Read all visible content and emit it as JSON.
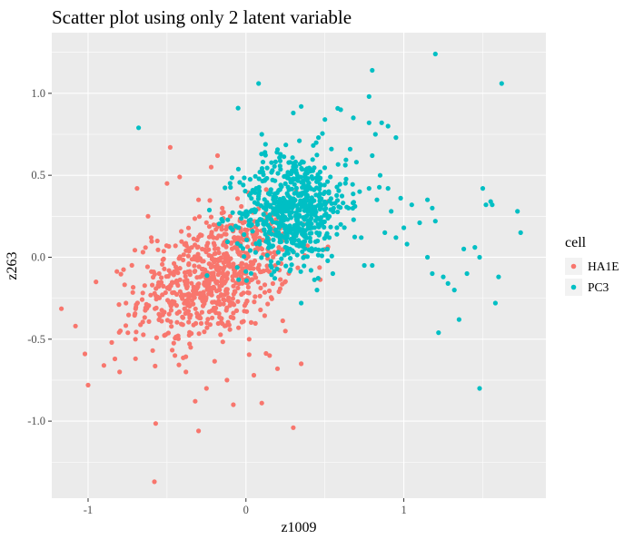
{
  "chart_data": {
    "type": "scatter",
    "title": "Scatter plot using only 2 latent variable",
    "xlabel": "z1009",
    "ylabel": "z263",
    "xlim": [
      -1.23,
      1.9
    ],
    "ylim": [
      -1.47,
      1.37
    ],
    "x_ticks": [
      -1,
      0,
      1
    ],
    "x_tick_labels": [
      "-1",
      "0",
      "1"
    ],
    "y_ticks": [
      -1.0,
      -0.5,
      0.0,
      0.5,
      1.0
    ],
    "y_tick_labels": [
      "-1.0",
      "-0.5",
      "0.0",
      "0.5",
      "1.0"
    ],
    "grid": true,
    "legend": {
      "title": "cell",
      "placement": "right"
    },
    "series": [
      {
        "name": "HA1E",
        "color": "#F8766D",
        "cluster": {
          "center": [
            -0.2,
            -0.12
          ],
          "sd": [
            0.24,
            0.2
          ],
          "corr": 0.35,
          "n": 720
        },
        "points": [
          [
            -1.08,
            -0.42
          ],
          [
            -1.02,
            -0.59
          ],
          [
            -1.0,
            -0.78
          ],
          [
            -0.95,
            -0.15
          ],
          [
            -0.9,
            -0.66
          ],
          [
            -0.85,
            -0.52
          ],
          [
            -0.83,
            -0.62
          ],
          [
            -0.8,
            -0.7
          ],
          [
            -0.76,
            -0.28
          ],
          [
            -0.7,
            -0.5
          ],
          [
            -0.69,
            0.42
          ],
          [
            -0.62,
            0.25
          ],
          [
            -0.6,
            0.12
          ],
          [
            -0.58,
            -1.37
          ],
          [
            -0.5,
            0.45
          ],
          [
            -0.48,
            0.67
          ],
          [
            -0.42,
            0.49
          ],
          [
            -0.38,
            -0.7
          ],
          [
            -0.35,
            -0.55
          ],
          [
            -0.3,
            -1.06
          ],
          [
            -0.25,
            -0.8
          ],
          [
            -0.22,
            0.55
          ],
          [
            -0.18,
            0.62
          ],
          [
            -0.12,
            -0.75
          ],
          [
            -0.08,
            -0.9
          ],
          [
            0.05,
            -0.72
          ],
          [
            0.1,
            -0.89
          ],
          [
            0.15,
            -0.6
          ],
          [
            0.2,
            -0.68
          ],
          [
            0.3,
            -1.04
          ],
          [
            0.35,
            -0.65
          ],
          [
            0.05,
            0.15
          ],
          [
            0.12,
            0.1
          ],
          [
            0.18,
            0.03
          ],
          [
            -0.55,
            -0.1
          ],
          [
            -0.45,
            -0.6
          ],
          [
            0.02,
            -0.5
          ],
          [
            -0.15,
            0.3
          ],
          [
            -0.3,
            0.35
          ],
          [
            0.25,
            -0.45
          ]
        ]
      },
      {
        "name": "PC3",
        "color": "#00BFC4",
        "cluster": {
          "center": [
            0.3,
            0.3
          ],
          "sd": [
            0.17,
            0.17
          ],
          "corr": 0.1,
          "n": 650
        },
        "points": [
          [
            -0.68,
            0.79
          ],
          [
            0.08,
            1.06
          ],
          [
            -0.05,
            0.91
          ],
          [
            0.1,
            0.75
          ],
          [
            0.3,
            0.88
          ],
          [
            0.35,
            0.92
          ],
          [
            0.5,
            0.84
          ],
          [
            0.6,
            0.9
          ],
          [
            0.68,
            0.85
          ],
          [
            0.78,
            0.98
          ],
          [
            0.8,
            1.14
          ],
          [
            0.78,
            0.82
          ],
          [
            0.82,
            0.75
          ],
          [
            0.86,
            0.82
          ],
          [
            0.9,
            0.8
          ],
          [
            0.95,
            0.73
          ],
          [
            0.8,
            0.62
          ],
          [
            0.7,
            0.58
          ],
          [
            0.85,
            0.5
          ],
          [
            0.9,
            0.42
          ],
          [
            0.98,
            0.36
          ],
          [
            1.05,
            0.32
          ],
          [
            1.1,
            0.21
          ],
          [
            0.72,
            0.4
          ],
          [
            0.65,
            0.3
          ],
          [
            0.6,
            0.2
          ],
          [
            1.0,
            0.18
          ],
          [
            0.95,
            0.12
          ],
          [
            1.02,
            0.08
          ],
          [
            0.88,
            0.15
          ],
          [
            1.15,
            0.35
          ],
          [
            1.18,
            0.3
          ],
          [
            1.2,
            0.22
          ],
          [
            1.22,
            -0.46
          ],
          [
            1.15,
            0.0
          ],
          [
            1.18,
            -0.1
          ],
          [
            1.25,
            -0.12
          ],
          [
            1.28,
            -0.16
          ],
          [
            1.32,
            -0.2
          ],
          [
            1.35,
            -0.38
          ],
          [
            1.4,
            -0.1
          ],
          [
            1.45,
            0.06
          ],
          [
            1.48,
            0.0
          ],
          [
            1.5,
            0.42
          ],
          [
            1.52,
            0.32
          ],
          [
            1.55,
            0.34
          ],
          [
            1.56,
            0.32
          ],
          [
            1.58,
            -0.28
          ],
          [
            1.6,
            -0.12
          ],
          [
            1.62,
            1.06
          ],
          [
            1.2,
            1.24
          ],
          [
            0.78,
            0.42
          ],
          [
            0.73,
            0.12
          ],
          [
            0.55,
            -0.1
          ],
          [
            0.45,
            -0.2
          ],
          [
            0.35,
            -0.28
          ],
          [
            0.75,
            -0.05
          ],
          [
            0.8,
            -0.05
          ],
          [
            1.48,
            -0.8
          ],
          [
            1.72,
            0.28
          ],
          [
            1.74,
            0.15
          ],
          [
            1.38,
            0.05
          ],
          [
            0.92,
            0.28
          ],
          [
            0.83,
            0.35
          ],
          [
            0.66,
            0.66
          ]
        ]
      }
    ]
  }
}
